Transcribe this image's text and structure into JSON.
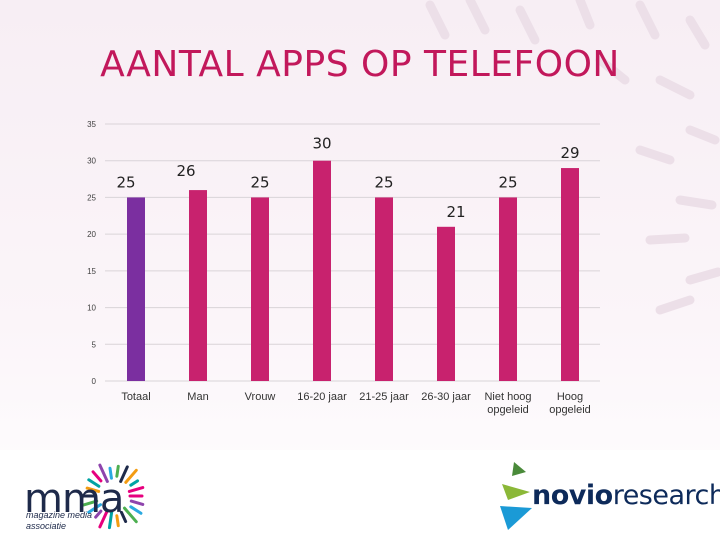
{
  "chart_data": {
    "type": "bar",
    "title": "AANTAL APPS OP TELEFOON",
    "categories": [
      "Totaal",
      "Man",
      "Vrouw",
      "16-20 jaar",
      "21-25 jaar",
      "26-30 jaar",
      "Niet hoog opgeleid",
      "Hoog opgeleid"
    ],
    "values": [
      25,
      26,
      25,
      30,
      25,
      21,
      25,
      29
    ],
    "ylim": [
      0,
      35
    ],
    "yticks": [
      0,
      5,
      10,
      15,
      20,
      25,
      30,
      35
    ],
    "xlabel": "",
    "ylabel": "",
    "grid": true
  },
  "colors": {
    "title": "#c2185b",
    "highlight_bar": "#7b2fa0",
    "bar": "#c8226e",
    "grid": "#d9d4d8",
    "axis_text": "#404040"
  },
  "logos": {
    "left": {
      "main": "mma",
      "sub_line1": "magazine media",
      "sub_line2": "associatie"
    },
    "right": {
      "part1": "novio",
      "part2": "research"
    }
  }
}
